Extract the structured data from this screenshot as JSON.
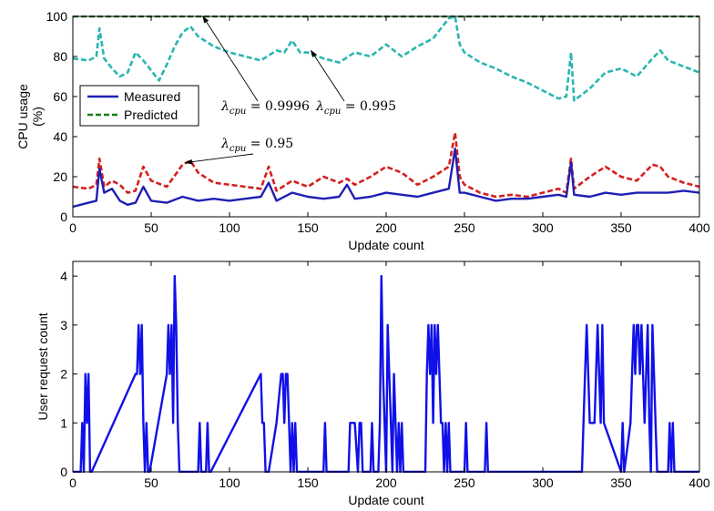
{
  "chart_data": [
    {
      "type": "line",
      "xlabel": "Update count",
      "ylabel_lines": [
        "CPU usage",
        "(%)"
      ],
      "xlim": [
        0,
        400
      ],
      "ylim": [
        0,
        100
      ],
      "xticks": [
        0,
        50,
        100,
        150,
        200,
        250,
        300,
        350,
        400
      ],
      "yticks": [
        0,
        20,
        40,
        60,
        80,
        100
      ],
      "grid": false,
      "legend_position": "middle-left",
      "legend": [
        {
          "label": "Measured",
          "style": "solid",
          "color": "#1f1fb4"
        },
        {
          "label": "Predicted",
          "style": "dashed",
          "color": "#1a7a1a"
        }
      ],
      "series": [
        {
          "color": "#1a7a1a",
          "style": "dashed",
          "x": [
            0,
            400
          ],
          "y": [
            100,
            100
          ]
        },
        {
          "color": "#2ab6b0",
          "style": "dashed",
          "x": [
            0,
            10,
            15,
            17,
            20,
            25,
            30,
            35,
            40,
            45,
            50,
            55,
            60,
            65,
            70,
            75,
            80,
            90,
            100,
            110,
            120,
            130,
            135,
            140,
            145,
            150,
            160,
            170,
            180,
            190,
            200,
            210,
            220,
            230,
            240,
            244,
            247,
            250,
            260,
            270,
            280,
            290,
            300,
            310,
            315,
            318,
            320,
            330,
            340,
            350,
            360,
            370,
            375,
            380,
            390,
            400
          ],
          "y": [
            79,
            78,
            80,
            94,
            79,
            74,
            70,
            72,
            82,
            78,
            73,
            68,
            76,
            85,
            92,
            95,
            90,
            85,
            82,
            80,
            78,
            83,
            82,
            88,
            82,
            82,
            79,
            77,
            82,
            80,
            86,
            80,
            85,
            89,
            99,
            100,
            86,
            82,
            77,
            74,
            70,
            67,
            63,
            59,
            60,
            82,
            58,
            64,
            72,
            74,
            70,
            79,
            83,
            78,
            75,
            72
          ]
        },
        {
          "color": "#d42020",
          "style": "dashed",
          "x": [
            0,
            10,
            15,
            17,
            20,
            25,
            30,
            35,
            40,
            45,
            50,
            60,
            70,
            75,
            80,
            90,
            100,
            110,
            120,
            125,
            130,
            140,
            150,
            160,
            170,
            175,
            180,
            190,
            200,
            210,
            220,
            230,
            240,
            244,
            247,
            250,
            260,
            270,
            280,
            290,
            300,
            310,
            315,
            318,
            320,
            330,
            340,
            350,
            360,
            370,
            375,
            380,
            390,
            400
          ],
          "y": [
            15,
            14,
            16,
            29,
            15,
            18,
            16,
            12,
            13,
            25,
            18,
            15,
            26,
            28,
            22,
            17,
            16,
            15,
            14,
            25,
            13,
            18,
            15,
            20,
            17,
            19,
            16,
            20,
            25,
            22,
            16,
            20,
            25,
            42,
            20,
            16,
            12,
            10,
            11,
            10,
            12,
            14,
            12,
            29,
            14,
            20,
            25,
            20,
            18,
            26,
            25,
            20,
            17,
            15
          ]
        },
        {
          "color": "#1f1fb4",
          "style": "solid",
          "x": [
            0,
            10,
            15,
            17,
            20,
            25,
            30,
            35,
            40,
            45,
            50,
            60,
            70,
            80,
            90,
            100,
            110,
            120,
            125,
            130,
            140,
            150,
            160,
            170,
            175,
            180,
            190,
            200,
            210,
            220,
            230,
            240,
            244,
            247,
            250,
            260,
            270,
            280,
            290,
            300,
            310,
            315,
            318,
            320,
            330,
            340,
            350,
            360,
            370,
            380,
            390,
            400
          ],
          "y": [
            5,
            7,
            8,
            24,
            12,
            14,
            8,
            6,
            7,
            15,
            8,
            7,
            10,
            8,
            9,
            8,
            9,
            10,
            17,
            8,
            12,
            10,
            9,
            10,
            16,
            9,
            10,
            12,
            11,
            10,
            12,
            14,
            34,
            12,
            12,
            10,
            8,
            9,
            9,
            10,
            11,
            10,
            27,
            11,
            10,
            12,
            11,
            12,
            12,
            12,
            13,
            12
          ]
        }
      ],
      "annotations": [
        {
          "text": "λ",
          "sub": "cpu",
          "rest": " = 0.9996",
          "target_data": [
            83,
            100
          ]
        },
        {
          "text": "λ",
          "sub": "cpu",
          "rest": " = 0.995",
          "target_data": [
            152,
            83
          ]
        },
        {
          "text": "λ",
          "sub": "cpu",
          "rest": " = 0.95",
          "target_data": [
            72,
            27
          ]
        }
      ]
    },
    {
      "type": "line",
      "xlabel": "Update count",
      "ylabel": "User request count",
      "xlim": [
        0,
        400
      ],
      "ylim": [
        0,
        4.3
      ],
      "xticks": [
        0,
        50,
        100,
        150,
        200,
        250,
        300,
        350,
        400
      ],
      "yticks": [
        0,
        1,
        2,
        3,
        4
      ],
      "grid": false,
      "series": [
        {
          "color": "#1010e8",
          "style": "solid",
          "x": [
            0,
            5,
            6,
            7,
            8,
            9,
            10,
            11,
            12,
            40,
            41,
            42,
            43,
            44,
            45,
            46,
            47,
            48,
            49,
            60,
            61,
            62,
            63,
            64,
            65,
            66,
            67,
            68,
            80,
            81,
            82,
            85,
            86,
            87,
            88,
            120,
            121,
            122,
            123,
            124,
            125,
            130,
            133,
            134,
            135,
            136,
            137,
            138,
            139,
            140,
            141,
            142,
            143,
            160,
            161,
            162,
            176,
            177,
            180,
            182,
            183,
            184,
            185,
            190,
            191,
            192,
            195,
            196,
            197,
            198,
            199,
            200,
            201,
            202,
            203,
            204,
            205,
            206,
            207,
            208,
            209,
            210,
            211,
            225,
            226,
            227,
            228,
            229,
            230,
            231,
            232,
            233,
            234,
            235,
            236,
            237,
            238,
            239,
            240,
            241,
            250,
            251,
            252,
            263,
            264,
            265,
            325,
            326,
            327,
            328,
            329,
            330,
            331,
            333,
            334,
            335,
            336,
            337,
            338,
            339,
            350,
            351,
            352,
            356,
            357,
            358,
            359,
            360,
            361,
            362,
            363,
            364,
            365,
            366,
            367,
            368,
            369,
            370,
            371,
            372,
            373,
            374,
            380,
            381,
            382,
            383,
            384,
            385,
            400
          ],
          "y": [
            0,
            0,
            1,
            0,
            2,
            1,
            2,
            0,
            0,
            2,
            2,
            3,
            2,
            3,
            1,
            0,
            1,
            0,
            0,
            2,
            3,
            2,
            3,
            1,
            4,
            3,
            1,
            0,
            0,
            1,
            0,
            0,
            1,
            0,
            0,
            2,
            1,
            1,
            0,
            0,
            0,
            1,
            2,
            2,
            1,
            2,
            2,
            1,
            0,
            1,
            0,
            1,
            0,
            0,
            1,
            0,
            0,
            1,
            1,
            0,
            1,
            1,
            0,
            0,
            1,
            0,
            0,
            1,
            4,
            2,
            1,
            0,
            3,
            2,
            1,
            0,
            2,
            1,
            0,
            1,
            0,
            1,
            0,
            0,
            2,
            3,
            2,
            3,
            1,
            3,
            2,
            3,
            2,
            1,
            1,
            0,
            1,
            0,
            1,
            0,
            0,
            1,
            0,
            0,
            1,
            0,
            0,
            1,
            2,
            3,
            2,
            1,
            1,
            1,
            2,
            3,
            2,
            1,
            3,
            1,
            0,
            1,
            0,
            1,
            2,
            3,
            2,
            3,
            3,
            2,
            3,
            2,
            1,
            2,
            3,
            1,
            0,
            3,
            2,
            1,
            0,
            0,
            0,
            1,
            0,
            1,
            0,
            0,
            0
          ]
        }
      ]
    }
  ]
}
